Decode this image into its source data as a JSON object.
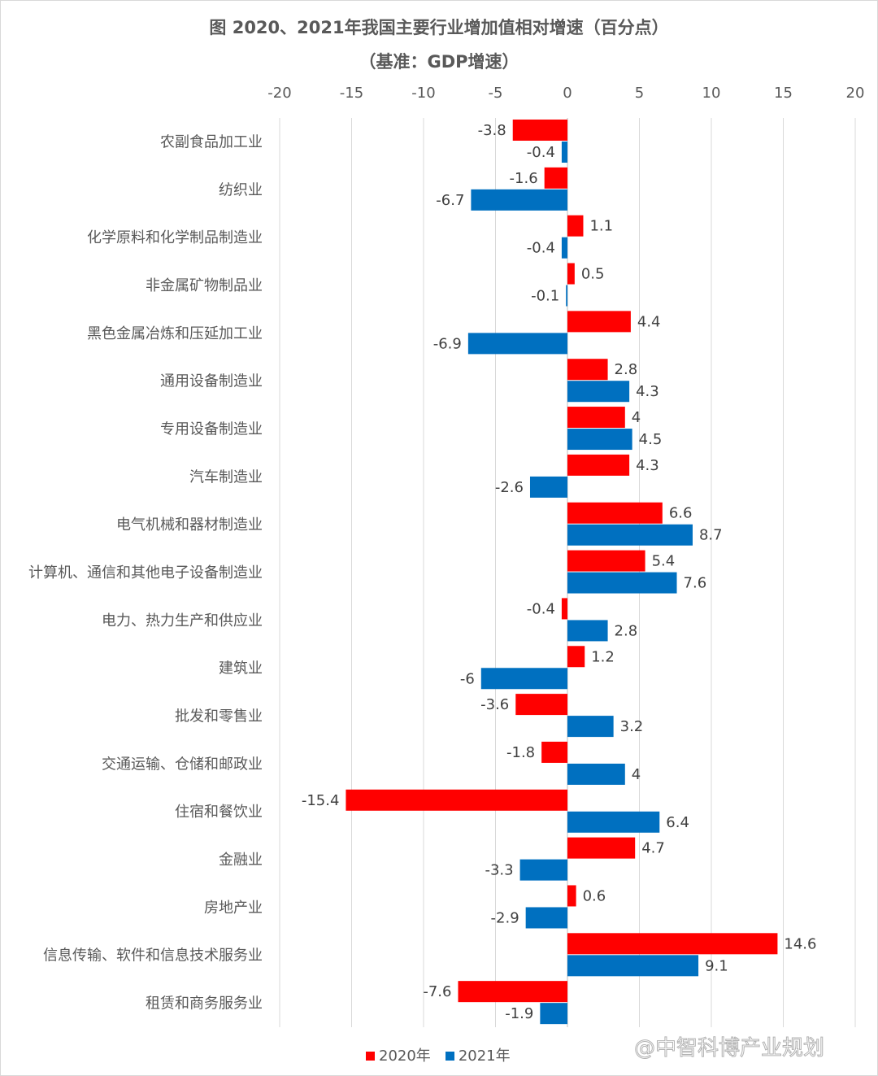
{
  "title": "图 2020、2021年我国主要行业增加值相对增速（百分点）",
  "subtitle": "（基准：GDP增速）",
  "watermark": "@中智科博产业规划",
  "chart_data": {
    "type": "bar",
    "orientation": "horizontal",
    "title": "图 2020、2021年我国主要行业增加值相对增速（百分点）",
    "subtitle": "（基准：GDP增速）",
    "xlim": [
      -20,
      20
    ],
    "xticks": [
      -20,
      -15,
      -10,
      -5,
      0,
      5,
      10,
      15,
      20
    ],
    "grid": true,
    "legend_position": "bottom",
    "categories": [
      "农副食品加工业",
      "纺织业",
      "化学原料和化学制品制造业",
      "非金属矿物制品业",
      "黑色金属冶炼和压延加工业",
      "通用设备制造业",
      "专用设备制造业",
      "汽车制造业",
      "电气机械和器材制造业",
      "计算机、通信和其他电子设备制造业",
      "电力、热力生产和供应业",
      "建筑业",
      "批发和零售业",
      "交通运输、仓储和邮政业",
      "住宿和餐饮业",
      "金融业",
      "房地产业",
      "信息传输、软件和信息技术服务业",
      "租赁和商务服务业"
    ],
    "series": [
      {
        "name": "2020年",
        "color": "#ff0000",
        "values": [
          -3.8,
          -1.6,
          1.1,
          0.5,
          4.4,
          2.8,
          4,
          4.3,
          6.6,
          5.4,
          -0.4,
          1.2,
          -3.6,
          -1.8,
          -15.4,
          4.7,
          0.6,
          14.6,
          -7.6
        ]
      },
      {
        "name": "2021年",
        "color": "#0070c0",
        "values": [
          -0.4,
          -6.7,
          -0.4,
          -0.1,
          -6.9,
          4.3,
          4.5,
          -2.6,
          8.7,
          7.6,
          2.8,
          -6,
          3.2,
          4,
          6.4,
          -3.3,
          -2.9,
          9.1,
          -1.9
        ]
      }
    ]
  }
}
